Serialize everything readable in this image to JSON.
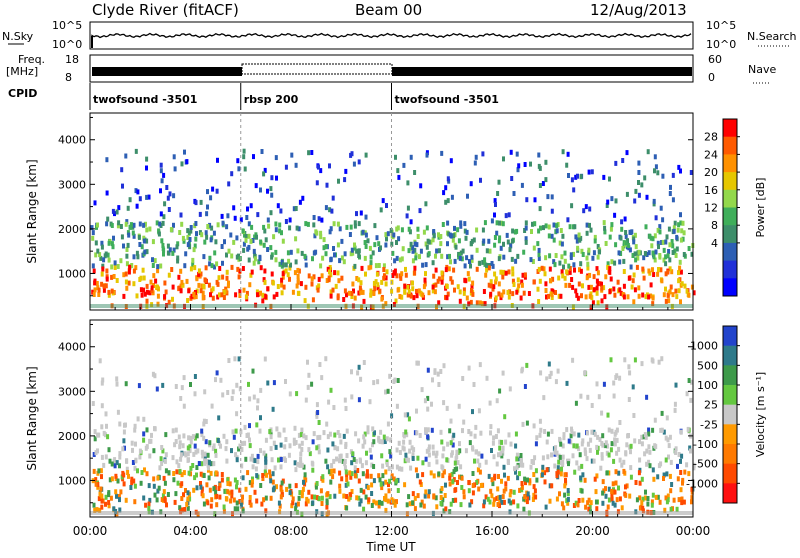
{
  "header": {
    "station": "Clyde River (fitACF)",
    "beam": "Beam 00",
    "date": "12/Aug/2013"
  },
  "status_panels": {
    "noise": {
      "left_label": "N.Sky",
      "left_ticks": [
        "10^5",
        "10^0"
      ],
      "right_ticks": [
        "10^5",
        "10^0"
      ],
      "right_label": "N.Search"
    },
    "freq": {
      "left_label_lines": [
        "Freq.",
        "[MHz]"
      ],
      "left_ticks": [
        "18",
        "8"
      ],
      "right_ticks": [
        "60",
        "0"
      ],
      "right_label": "Nave"
    },
    "cpid": {
      "label": "CPID",
      "segments": [
        {
          "start_hour": 0,
          "end_hour": 6,
          "name": "twofsound -3501"
        },
        {
          "start_hour": 6,
          "end_hour": 12,
          "name": "rbsp 200"
        },
        {
          "start_hour": 12,
          "end_hour": 24,
          "name": "twofsound -3501"
        }
      ]
    }
  },
  "chart_data": [
    {
      "type": "heatmap",
      "quantity": "power",
      "ylabel": "Slant Range [km]",
      "ylim": [
        180,
        4600
      ],
      "yticks": [
        1000,
        2000,
        3000,
        4000
      ],
      "colorbar_label": "Power [dB]",
      "colorbar_ticks": [
        "28",
        "24",
        "20",
        "16",
        "12",
        "8",
        "4"
      ],
      "colorbar_colors": [
        "#ff0000",
        "#ff5a00",
        "#ff9100",
        "#e6c700",
        "#93d84b",
        "#3fae5a",
        "#3d8e6a",
        "#2d5fb4",
        "#2030d8",
        "#0000ff"
      ],
      "colorbar_ticks_values": [
        28,
        24,
        20,
        16,
        12,
        8,
        4
      ]
    },
    {
      "type": "heatmap",
      "quantity": "velocity",
      "ylabel": "Slant Range [km]",
      "xlabel": "Time UT",
      "ylim": [
        180,
        4600
      ],
      "yticks": [
        1000,
        2000,
        3000,
        4000
      ],
      "xticks": [
        "00:00",
        "04:00",
        "08:00",
        "12:00",
        "16:00",
        "20:00",
        "00:00"
      ],
      "xlim_hours": [
        0,
        24
      ],
      "colorbar_label": "Velocity [m s⁻¹]",
      "colorbar_ticks": [
        "1000",
        "500",
        "100",
        "25",
        "-25",
        "-100",
        "-500",
        "-1000"
      ],
      "colorbar_colors": [
        "#2244cc",
        "#2e7a8a",
        "#3d9a4a",
        "#64c840",
        "#c8c8c8",
        "#ff9a00",
        "#ff7a00",
        "#ff4a00",
        "#ff1010"
      ]
    }
  ]
}
